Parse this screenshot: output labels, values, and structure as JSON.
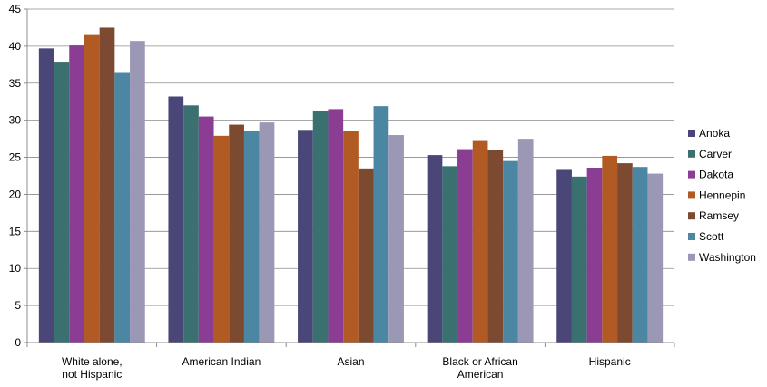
{
  "chart_data": {
    "type": "bar",
    "title": "",
    "xlabel": "",
    "ylabel": "",
    "ylim": [
      0,
      45
    ],
    "yticks": [
      0,
      5,
      10,
      15,
      20,
      25,
      30,
      35,
      40,
      45
    ],
    "grid": true,
    "legend_position": "right",
    "categories": [
      [
        "White alone,",
        "not Hispanic"
      ],
      [
        "American Indian"
      ],
      [
        "Asian"
      ],
      [
        "Black or African",
        "American"
      ],
      [
        "Hispanic"
      ]
    ],
    "series": [
      {
        "name": "Anoka",
        "color": "#4a4778",
        "values": [
          39.7,
          33.2,
          28.7,
          25.3,
          23.3
        ]
      },
      {
        "name": "Carver",
        "color": "#3b7070",
        "values": [
          37.9,
          32.0,
          31.2,
          23.8,
          22.4
        ]
      },
      {
        "name": "Dakota",
        "color": "#8b3d93",
        "values": [
          40.1,
          30.5,
          31.5,
          26.1,
          23.6
        ]
      },
      {
        "name": "Hennepin",
        "color": "#b25a24",
        "values": [
          41.5,
          27.9,
          28.6,
          27.2,
          25.2
        ]
      },
      {
        "name": "Ramsey",
        "color": "#7c4a31",
        "values": [
          42.5,
          29.4,
          23.5,
          26.0,
          24.2
        ]
      },
      {
        "name": "Scott",
        "color": "#4b86a3",
        "values": [
          36.5,
          28.6,
          31.9,
          24.5,
          23.7
        ]
      },
      {
        "name": "Washington",
        "color": "#9b98b5",
        "values": [
          40.7,
          29.7,
          28.0,
          27.5,
          22.8
        ]
      }
    ]
  }
}
